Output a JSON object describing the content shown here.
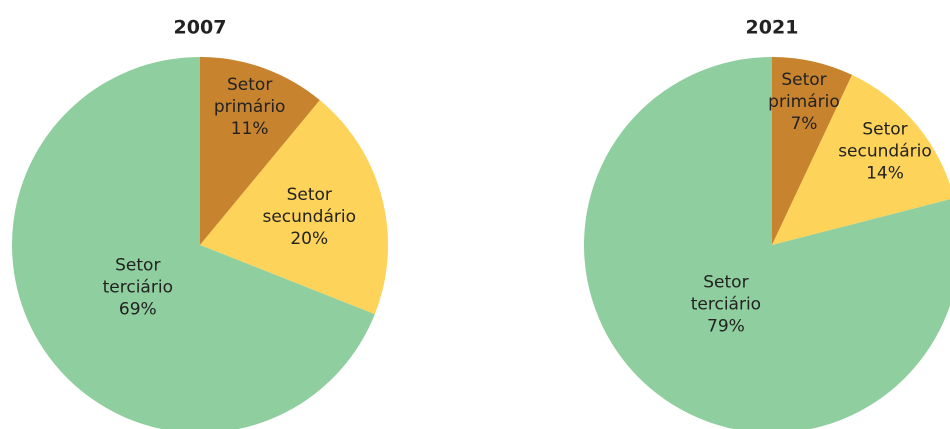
{
  "chart_data": [
    {
      "type": "pie",
      "title": "2007",
      "categories": [
        "Setor primário",
        "Setor secundário",
        "Setor terciário"
      ],
      "values": [
        11,
        20,
        69
      ],
      "value_labels": [
        "11%",
        "20%",
        "69%"
      ],
      "colors": [
        "#c8832e",
        "#fdd35a",
        "#8fce9e"
      ]
    },
    {
      "type": "pie",
      "title": "2021",
      "categories": [
        "Setor primário",
        "Setor secundário",
        "Setor terciário"
      ],
      "values": [
        7,
        14,
        79
      ],
      "value_labels": [
        "7%",
        "14%",
        "79%"
      ],
      "colors": [
        "#c8832e",
        "#fdd35a",
        "#8fce9e"
      ]
    }
  ]
}
